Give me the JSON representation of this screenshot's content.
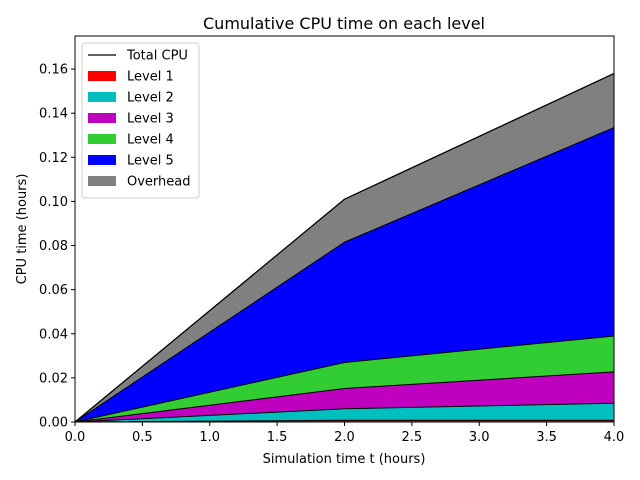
{
  "chart_data": {
    "type": "area",
    "stacked": true,
    "title": "Cumulative CPU time on each level",
    "xlabel": "Simulation time t (hours)",
    "ylabel": "CPU time (hours)",
    "xlim": [
      0.0,
      4.0
    ],
    "ylim": [
      0.0,
      0.175
    ],
    "xticks": [
      0.0,
      0.5,
      1.0,
      1.5,
      2.0,
      2.5,
      3.0,
      3.5,
      4.0
    ],
    "xtick_labels": [
      "0.0",
      "0.5",
      "1.0",
      "1.5",
      "2.0",
      "2.5",
      "3.0",
      "3.5",
      "4.0"
    ],
    "yticks": [
      0.0,
      0.02,
      0.04,
      0.06,
      0.08,
      0.1,
      0.12,
      0.14,
      0.16
    ],
    "ytick_labels": [
      "0.00",
      "0.02",
      "0.04",
      "0.06",
      "0.08",
      "0.10",
      "0.12",
      "0.14",
      "0.16"
    ],
    "grid": false,
    "legend_position": "top-left",
    "x": [
      0.0,
      2.0,
      4.0
    ],
    "series": [
      {
        "name": "Level 1",
        "color": "#ff0000",
        "values": [
          0.0,
          0.0008,
          0.0008
        ]
      },
      {
        "name": "Level 2",
        "color": "#00bfbf",
        "values": [
          0.0,
          0.0052,
          0.0077
        ]
      },
      {
        "name": "Level 3",
        "color": "#bf00bf",
        "values": [
          0.0,
          0.0092,
          0.0142
        ]
      },
      {
        "name": "Level 4",
        "color": "#32cd32",
        "values": [
          0.0,
          0.0118,
          0.0163
        ]
      },
      {
        "name": "Level 5",
        "color": "#0000ff",
        "values": [
          0.0,
          0.0545,
          0.0945
        ]
      },
      {
        "name": "Overhead",
        "color": "#808080",
        "values": [
          0.0,
          0.0195,
          0.0245
        ]
      }
    ],
    "total_line": {
      "name": "Total CPU",
      "color": "#000000",
      "values": [
        0.0,
        0.101,
        0.158
      ]
    }
  }
}
